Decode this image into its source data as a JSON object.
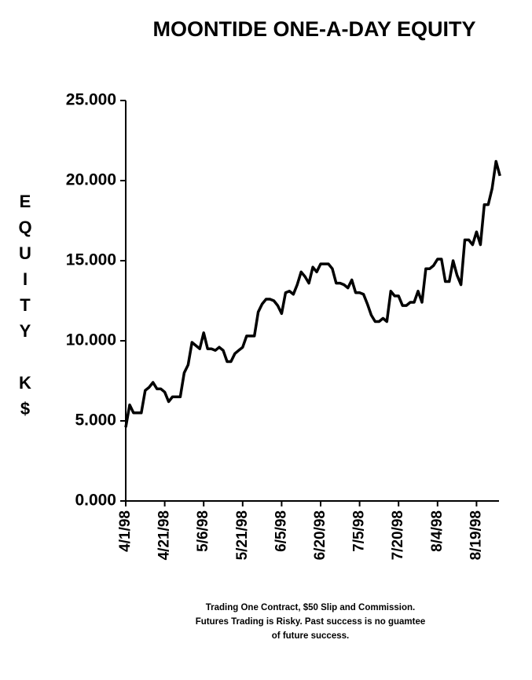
{
  "chart_data": {
    "type": "line",
    "title": "MOONTIDE ONE-A-DAY EQUITY",
    "y_label": "EQUITY K$",
    "notes": [
      "Trading One Contract, $50 Slip and Commission.",
      "Futures Trading is Risky. Past success is no guamtee",
      "of future success."
    ],
    "color": "#000000",
    "categories": [
      "4/1/98",
      null,
      null,
      null,
      null,
      null,
      null,
      null,
      null,
      null,
      "4/21/98",
      null,
      null,
      null,
      null,
      null,
      null,
      null,
      null,
      null,
      "5/6/98",
      null,
      null,
      null,
      null,
      null,
      null,
      null,
      null,
      null,
      "5/21/98",
      null,
      null,
      null,
      null,
      null,
      null,
      null,
      null,
      null,
      "6/5/98",
      null,
      null,
      null,
      null,
      null,
      null,
      null,
      null,
      null,
      "6/20/98",
      null,
      null,
      null,
      null,
      null,
      null,
      null,
      null,
      null,
      "7/5/98",
      null,
      null,
      null,
      null,
      null,
      null,
      null,
      null,
      null,
      "7/20/98",
      null,
      null,
      null,
      null,
      null,
      null,
      null,
      null,
      null,
      "8/4/98",
      null,
      null,
      null,
      null,
      null,
      null,
      null,
      null,
      null,
      "8/19/98",
      null,
      null,
      null,
      null,
      null,
      null
    ],
    "values": [
      4.6,
      6.0,
      5.5,
      5.5,
      5.5,
      6.9,
      7.1,
      7.4,
      7.0,
      7.0,
      6.8,
      6.2,
      6.5,
      6.5,
      6.5,
      8.0,
      8.5,
      9.9,
      9.7,
      9.5,
      10.5,
      9.5,
      9.5,
      9.4,
      9.6,
      9.4,
      8.7,
      8.7,
      9.2,
      9.4,
      9.6,
      10.3,
      10.3,
      10.3,
      11.8,
      12.3,
      12.6,
      12.6,
      12.5,
      12.2,
      11.7,
      13.0,
      13.1,
      12.9,
      13.5,
      14.3,
      14.0,
      13.6,
      14.6,
      14.3,
      14.8,
      14.8,
      14.8,
      14.5,
      13.6,
      13.6,
      13.5,
      13.3,
      13.8,
      13.0,
      13.0,
      12.9,
      12.3,
      11.6,
      11.2,
      11.2,
      11.4,
      11.2,
      13.1,
      12.8,
      12.8,
      12.2,
      12.2,
      12.4,
      12.4,
      13.1,
      12.4,
      14.5,
      14.5,
      14.7,
      15.1,
      15.1,
      13.7,
      13.7,
      15.0,
      14.1,
      13.5,
      16.3,
      16.3,
      16.0,
      16.8,
      16.0,
      18.5,
      18.5,
      19.5,
      21.2,
      20.3
    ],
    "ylim": [
      0,
      25
    ],
    "yticks": [
      {
        "value": 0,
        "label": "0.000"
      },
      {
        "value": 5,
        "label": "5.000"
      },
      {
        "value": 10,
        "label": "10.000"
      },
      {
        "value": 15,
        "label": "15.000"
      },
      {
        "value": 20,
        "label": "20.000"
      },
      {
        "value": 25,
        "label": "25.000"
      }
    ]
  }
}
